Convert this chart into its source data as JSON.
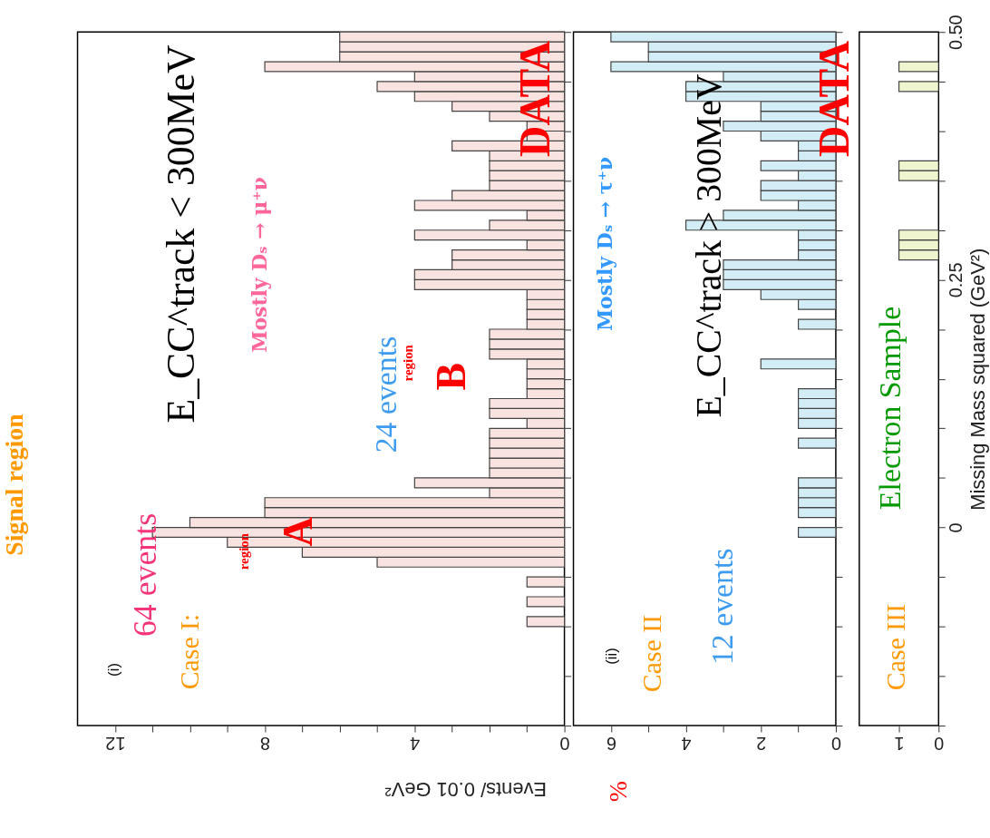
{
  "chart_data": [
    {
      "type": "histogram",
      "orientation": "horizontal",
      "color": "#f9e3e1",
      "bins": [
        -0.2,
        -0.19,
        -0.18,
        -0.17,
        -0.16,
        -0.15,
        -0.14,
        -0.13,
        -0.12,
        -0.11,
        -0.1,
        -0.09,
        -0.08,
        -0.07,
        -0.06,
        -0.05,
        -0.04,
        -0.03,
        -0.02,
        -0.01,
        0,
        0.01,
        0.02,
        0.03,
        0.04,
        0.05,
        0.06,
        0.07,
        0.08,
        0.09,
        0.1,
        0.11,
        0.12,
        0.13,
        0.14,
        0.15,
        0.16,
        0.17,
        0.18,
        0.19,
        0.2,
        0.21,
        0.22,
        0.23,
        0.24,
        0.25,
        0.26,
        0.27,
        0.28,
        0.29,
        0.3,
        0.31,
        0.32,
        0.33,
        0.34,
        0.35,
        0.36,
        0.37,
        0.38,
        0.39,
        0.4,
        0.41,
        0.42,
        0.43,
        0.44,
        0.45,
        0.46,
        0.47,
        0.48,
        0.49,
        0.5
      ],
      "values": [
        0,
        0,
        0,
        0,
        0,
        0,
        0,
        0,
        0,
        0,
        1,
        0,
        1,
        0,
        1,
        0,
        5,
        7,
        9,
        11,
        10,
        8,
        8,
        2,
        4,
        2,
        2,
        2,
        2,
        2,
        1,
        2,
        2,
        1,
        1,
        1,
        1,
        2,
        2,
        2,
        1,
        1,
        1,
        1,
        4,
        4,
        3,
        3,
        1,
        4,
        2,
        1,
        4,
        3,
        2,
        2,
        2,
        2,
        3,
        1,
        1,
        2,
        3,
        4,
        5,
        4,
        8,
        6,
        6,
        6
      ],
      "xlim": [
        13,
        0
      ],
      "xticks": [
        0,
        {
          "value": 1,
          "label": null
        },
        {
          "value": 2,
          "label": null
        },
        {
          "value": 3,
          "label": null
        },
        4,
        {
          "value": 5,
          "label": null
        },
        {
          "value": 6,
          "label": null
        },
        {
          "value": 7,
          "label": null
        },
        8,
        {
          "value": 9,
          "label": null
        },
        {
          "value": 10,
          "label": null
        },
        {
          "value": 11,
          "label": null
        },
        12
      ],
      "ylim": [
        -0.2,
        0.5
      ],
      "yticks": [
        {
          "value": -0.2,
          "label": null
        },
        {
          "value": -0.15,
          "label": null
        },
        {
          "value": -0.1,
          "label": null
        },
        {
          "value": -0.05,
          "label": null
        },
        {
          "value": 0,
          "label": null
        },
        {
          "value": 0.05,
          "label": null
        },
        {
          "value": 0.1,
          "label": null
        },
        {
          "value": 0.15,
          "label": null
        },
        {
          "value": 0.2,
          "label": null
        },
        {
          "value": 0.25,
          "label": null
        },
        {
          "value": 0.3,
          "label": null
        },
        {
          "value": 0.35,
          "label": null
        },
        {
          "value": 0.4,
          "label": null
        },
        {
          "value": 0.45,
          "label": null
        },
        {
          "value": 0.5,
          "label": null
        }
      ],
      "tick_labels": "x",
      "xlabel": "Events/ 0.01 GeV²",
      "annotations": [
        "(i)",
        "Case I:",
        "64 events",
        "region",
        "A",
        "Mostly Dₛ → μ⁺ν",
        "24 events",
        "region",
        "B",
        "DATA",
        "E_CC^track < 300MeV",
        "Signal region"
      ]
    },
    {
      "type": "histogram",
      "orientation": "horizontal",
      "color": "#d2edf5",
      "bins": [
        -0.2,
        -0.19,
        -0.18,
        -0.17,
        -0.16,
        -0.15,
        -0.14,
        -0.13,
        -0.12,
        -0.11,
        -0.1,
        -0.09,
        -0.08,
        -0.07,
        -0.06,
        -0.05,
        -0.04,
        -0.03,
        -0.02,
        -0.01,
        0,
        0.01,
        0.02,
        0.03,
        0.04,
        0.05,
        0.06,
        0.07,
        0.08,
        0.09,
        0.1,
        0.11,
        0.12,
        0.13,
        0.14,
        0.15,
        0.16,
        0.17,
        0.18,
        0.19,
        0.2,
        0.21,
        0.22,
        0.23,
        0.24,
        0.25,
        0.26,
        0.27,
        0.28,
        0.29,
        0.3,
        0.31,
        0.32,
        0.33,
        0.34,
        0.35,
        0.36,
        0.37,
        0.38,
        0.39,
        0.4,
        0.41,
        0.42,
        0.43,
        0.44,
        0.45,
        0.46,
        0.47,
        0.48,
        0.49,
        0.5
      ],
      "values": [
        0,
        0,
        0,
        0,
        0,
        0,
        0,
        0,
        0,
        0,
        0,
        0,
        0,
        0,
        0,
        0,
        0,
        0,
        0,
        1,
        0,
        1,
        1,
        1,
        1,
        0,
        0,
        0,
        1,
        0,
        1,
        1,
        1,
        1,
        0,
        0,
        2,
        0,
        0,
        0,
        1,
        0,
        1,
        2,
        3,
        3,
        3,
        1,
        1,
        1,
        4,
        3,
        1,
        2,
        2,
        1,
        2,
        1,
        1,
        2,
        3,
        2,
        2,
        4,
        4,
        3,
        6,
        5,
        5,
        6
      ],
      "xlim": [
        7,
        0
      ],
      "xticks": [
        0,
        {
          "value": 1,
          "label": null
        },
        2,
        {
          "value": 3,
          "label": null
        },
        4,
        {
          "value": 5,
          "label": null
        },
        6
      ],
      "ylim": [
        -0.2,
        0.5
      ],
      "yticks": [
        {
          "value": -0.2,
          "label": null
        },
        {
          "value": -0.15,
          "label": null
        },
        {
          "value": -0.1,
          "label": null
        },
        {
          "value": -0.05,
          "label": null
        },
        {
          "value": 0,
          "label": null
        },
        {
          "value": 0.05,
          "label": null
        },
        {
          "value": 0.1,
          "label": null
        },
        {
          "value": 0.15,
          "label": null
        },
        {
          "value": 0.2,
          "label": null
        },
        {
          "value": 0.25,
          "label": null
        },
        {
          "value": 0.3,
          "label": null
        },
        {
          "value": 0.35,
          "label": null
        },
        {
          "value": 0.4,
          "label": null
        },
        {
          "value": 0.45,
          "label": null
        },
        {
          "value": 0.5,
          "label": null
        }
      ],
      "tick_labels": "x",
      "annotations": [
        "(ii)",
        "Case II",
        "Mostly Dₛ → τ⁺ν",
        "E_CC^track > 300MeV",
        "12 events",
        "DATA",
        "%"
      ]
    },
    {
      "type": "histogram",
      "orientation": "horizontal",
      "color": "#eef5cf",
      "bins": [
        -0.2,
        -0.19,
        -0.18,
        -0.17,
        -0.16,
        -0.15,
        -0.14,
        -0.13,
        -0.12,
        -0.11,
        -0.1,
        -0.09,
        -0.08,
        -0.07,
        -0.06,
        -0.05,
        -0.04,
        -0.03,
        -0.02,
        -0.01,
        0,
        0.01,
        0.02,
        0.03,
        0.04,
        0.05,
        0.06,
        0.07,
        0.08,
        0.09,
        0.1,
        0.11,
        0.12,
        0.13,
        0.14,
        0.15,
        0.16,
        0.17,
        0.18,
        0.19,
        0.2,
        0.21,
        0.22,
        0.23,
        0.24,
        0.25,
        0.26,
        0.27,
        0.28,
        0.29,
        0.3,
        0.31,
        0.32,
        0.33,
        0.34,
        0.35,
        0.36,
        0.37,
        0.38,
        0.39,
        0.4,
        0.41,
        0.42,
        0.43,
        0.44,
        0.45,
        0.46,
        0.47,
        0.48,
        0.49,
        0.5
      ],
      "values": [
        0,
        0,
        0,
        0,
        0,
        0,
        0,
        0,
        0,
        0,
        0,
        0,
        0,
        0,
        0,
        0,
        0,
        0,
        0,
        0,
        0,
        0,
        0,
        0,
        0,
        0,
        0,
        0,
        0,
        0,
        0,
        0,
        0,
        0,
        0,
        0,
        0,
        0,
        0,
        0,
        0,
        0,
        0,
        0,
        0,
        0,
        0,
        1,
        1,
        1,
        0,
        0,
        0,
        0,
        0,
        1,
        1,
        0,
        0,
        0,
        0,
        0,
        0,
        0,
        1,
        0,
        1,
        0,
        0,
        0
      ],
      "xlim": [
        2,
        0
      ],
      "xticks": [
        0,
        1
      ],
      "ylim": [
        -0.2,
        0.5
      ],
      "yticks": [
        {
          "value": -0.2,
          "label": null
        },
        {
          "value": -0.15,
          "label": null
        },
        {
          "value": -0.1,
          "label": null
        },
        {
          "value": -0.05,
          "label": null
        },
        0,
        {
          "value": 0.05,
          "label": null
        },
        {
          "value": 0.1,
          "label": null
        },
        {
          "value": 0.15,
          "label": null
        },
        {
          "value": 0.2,
          "label": null
        },
        0.25,
        {
          "value": 0.3,
          "label": null
        },
        {
          "value": 0.35,
          "label": null
        },
        {
          "value": 0.4,
          "label": null
        },
        {
          "value": 0.45,
          "label": null
        },
        {
          "value": 0.5,
          "label": "0.50"
        }
      ],
      "ylabel": "Missing Mass squared (GeV²)",
      "annotations": [
        "Case III",
        "Electron Sample"
      ]
    }
  ]
}
